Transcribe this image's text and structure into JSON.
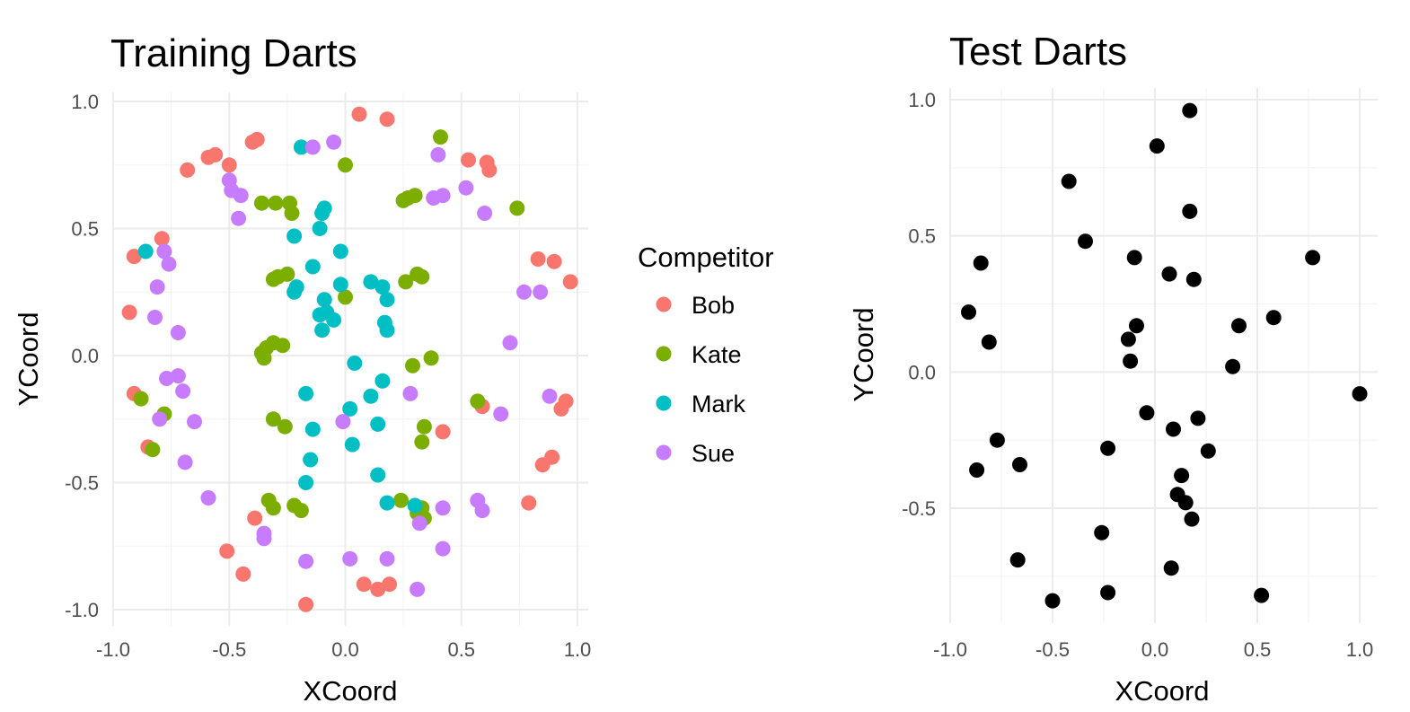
{
  "chart_data": [
    {
      "type": "scatter",
      "title": "Training Darts",
      "xlabel": "XCoord",
      "ylabel": "YCoord",
      "xlim": [
        -1.0,
        1.0
      ],
      "ylim": [
        -1.0,
        1.0
      ],
      "x_ticks": [
        "-1.0",
        "-0.5",
        "0.0",
        "0.5",
        "1.0"
      ],
      "y_ticks": [
        "-1.0",
        "-0.5",
        "0.0",
        "0.5",
        "1.0"
      ],
      "grid": true,
      "legend": {
        "title": "Competitor",
        "placement": "right"
      },
      "series": [
        {
          "name": "Bob",
          "color": "#F8766D",
          "points": [
            [
              0.06,
              0.95
            ],
            [
              0.18,
              0.93
            ],
            [
              -0.38,
              0.85
            ],
            [
              -0.4,
              0.84
            ],
            [
              -0.59,
              0.78
            ],
            [
              -0.56,
              0.79
            ],
            [
              -0.5,
              0.75
            ],
            [
              -0.68,
              0.73
            ],
            [
              0.53,
              0.77
            ],
            [
              0.61,
              0.76
            ],
            [
              0.62,
              0.73
            ],
            [
              -0.79,
              0.46
            ],
            [
              -0.91,
              0.39
            ],
            [
              0.83,
              0.38
            ],
            [
              0.9,
              0.37
            ],
            [
              0.97,
              0.29
            ],
            [
              -0.93,
              0.17
            ],
            [
              -0.91,
              -0.15
            ],
            [
              -0.85,
              -0.36
            ],
            [
              0.95,
              -0.18
            ],
            [
              0.93,
              -0.21
            ],
            [
              0.59,
              -0.2
            ],
            [
              0.42,
              -0.3
            ],
            [
              0.85,
              -0.43
            ],
            [
              0.89,
              -0.4
            ],
            [
              0.79,
              -0.58
            ],
            [
              -0.39,
              -0.64
            ],
            [
              -0.51,
              -0.77
            ],
            [
              -0.44,
              -0.86
            ],
            [
              -0.17,
              -0.98
            ],
            [
              0.08,
              -0.9
            ],
            [
              0.14,
              -0.92
            ],
            [
              0.19,
              -0.9
            ]
          ]
        },
        {
          "name": "Kate",
          "color": "#7CAE00",
          "points": [
            [
              0.41,
              0.86
            ],
            [
              0.0,
              0.75
            ],
            [
              -0.36,
              0.6
            ],
            [
              -0.3,
              0.6
            ],
            [
              -0.24,
              0.6
            ],
            [
              -0.23,
              0.56
            ],
            [
              0.25,
              0.61
            ],
            [
              0.27,
              0.62
            ],
            [
              0.3,
              0.63
            ],
            [
              0.74,
              0.58
            ],
            [
              -0.29,
              0.31
            ],
            [
              -0.31,
              0.3
            ],
            [
              -0.25,
              0.32
            ],
            [
              0.0,
              0.23
            ],
            [
              0.26,
              0.29
            ],
            [
              0.31,
              0.32
            ],
            [
              0.33,
              0.31
            ],
            [
              -0.36,
              0.01
            ],
            [
              -0.34,
              0.03
            ],
            [
              -0.31,
              0.05
            ],
            [
              -0.27,
              0.04
            ],
            [
              -0.35,
              -0.01
            ],
            [
              0.29,
              -0.04
            ],
            [
              0.37,
              -0.01
            ],
            [
              -0.88,
              -0.17
            ],
            [
              -0.78,
              -0.23
            ],
            [
              -0.83,
              -0.37
            ],
            [
              0.57,
              -0.18
            ],
            [
              0.34,
              -0.28
            ],
            [
              0.33,
              -0.34
            ],
            [
              -0.31,
              -0.25
            ],
            [
              -0.26,
              -0.28
            ],
            [
              -0.33,
              -0.57
            ],
            [
              -0.31,
              -0.6
            ],
            [
              -0.22,
              -0.59
            ],
            [
              -0.19,
              -0.61
            ],
            [
              0.24,
              -0.57
            ],
            [
              0.33,
              -0.6
            ],
            [
              0.34,
              -0.64
            ],
            [
              0.31,
              -0.62
            ]
          ]
        },
        {
          "name": "Mark",
          "color": "#00BFC4",
          "points": [
            [
              -0.19,
              0.82
            ],
            [
              -0.09,
              0.58
            ],
            [
              -0.1,
              0.56
            ],
            [
              -0.22,
              0.47
            ],
            [
              -0.11,
              0.5
            ],
            [
              -0.02,
              0.41
            ],
            [
              -0.86,
              0.41
            ],
            [
              -0.14,
              0.35
            ],
            [
              -0.21,
              0.27
            ],
            [
              -0.22,
              0.25
            ],
            [
              -0.09,
              0.22
            ],
            [
              -0.11,
              0.16
            ],
            [
              -0.08,
              0.17
            ],
            [
              -0.05,
              0.14
            ],
            [
              -0.1,
              0.1
            ],
            [
              -0.02,
              0.28
            ],
            [
              0.11,
              0.29
            ],
            [
              0.16,
              0.27
            ],
            [
              0.18,
              0.22
            ],
            [
              0.17,
              0.13
            ],
            [
              0.18,
              0.1
            ],
            [
              0.04,
              -0.03
            ],
            [
              0.11,
              -0.16
            ],
            [
              0.16,
              -0.1
            ],
            [
              0.02,
              -0.21
            ],
            [
              -0.17,
              -0.15
            ],
            [
              -0.14,
              -0.29
            ],
            [
              -0.15,
              -0.41
            ],
            [
              -0.17,
              -0.5
            ],
            [
              0.03,
              -0.35
            ],
            [
              0.14,
              -0.27
            ],
            [
              0.14,
              -0.47
            ],
            [
              0.18,
              -0.58
            ],
            [
              0.3,
              -0.59
            ]
          ]
        },
        {
          "name": "Sue",
          "color": "#C77CFF",
          "points": [
            [
              -0.05,
              0.84
            ],
            [
              -0.14,
              0.82
            ],
            [
              0.4,
              0.79
            ],
            [
              -0.5,
              0.69
            ],
            [
              -0.49,
              0.65
            ],
            [
              -0.45,
              0.63
            ],
            [
              -0.46,
              0.54
            ],
            [
              0.38,
              0.62
            ],
            [
              0.42,
              0.63
            ],
            [
              0.52,
              0.66
            ],
            [
              0.6,
              0.56
            ],
            [
              -0.78,
              0.41
            ],
            [
              -0.76,
              0.36
            ],
            [
              -0.81,
              0.27
            ],
            [
              -0.82,
              0.15
            ],
            [
              -0.72,
              0.09
            ],
            [
              0.77,
              0.25
            ],
            [
              0.84,
              0.25
            ],
            [
              0.71,
              0.05
            ],
            [
              -0.77,
              -0.09
            ],
            [
              -0.72,
              -0.08
            ],
            [
              -0.7,
              -0.14
            ],
            [
              -0.8,
              -0.25
            ],
            [
              -0.65,
              -0.26
            ],
            [
              -0.69,
              -0.42
            ],
            [
              -0.59,
              -0.56
            ],
            [
              0.28,
              -0.15
            ],
            [
              -0.01,
              -0.26
            ],
            [
              0.88,
              -0.16
            ],
            [
              0.67,
              -0.23
            ],
            [
              0.57,
              -0.57
            ],
            [
              0.59,
              -0.61
            ],
            [
              -0.35,
              -0.7
            ],
            [
              -0.35,
              -0.72
            ],
            [
              -0.17,
              -0.81
            ],
            [
              0.02,
              -0.8
            ],
            [
              0.18,
              -0.8
            ],
            [
              0.42,
              -0.6
            ],
            [
              0.42,
              -0.76
            ],
            [
              0.32,
              -0.66
            ],
            [
              0.31,
              -0.92
            ]
          ]
        }
      ]
    },
    {
      "type": "scatter",
      "title": "Test Darts",
      "xlabel": "XCoord",
      "ylabel": "YCoord",
      "xlim": [
        -1.0,
        1.0
      ],
      "ylim": [
        -0.85,
        1.0
      ],
      "x_ticks": [
        "-1.0",
        "-0.5",
        "0.0",
        "0.5",
        "1.0"
      ],
      "y_ticks": [
        "-0.5",
        "0.0",
        "0.5",
        "1.0"
      ],
      "grid": true,
      "series": [
        {
          "color": "#000000",
          "points": [
            [
              0.17,
              0.96
            ],
            [
              0.01,
              0.83
            ],
            [
              -0.42,
              0.7
            ],
            [
              0.17,
              0.59
            ],
            [
              -0.34,
              0.48
            ],
            [
              -0.85,
              0.4
            ],
            [
              -0.1,
              0.42
            ],
            [
              0.77,
              0.42
            ],
            [
              0.07,
              0.36
            ],
            [
              0.19,
              0.34
            ],
            [
              -0.91,
              0.22
            ],
            [
              -0.09,
              0.17
            ],
            [
              -0.81,
              0.11
            ],
            [
              -0.13,
              0.12
            ],
            [
              -0.12,
              0.04
            ],
            [
              0.41,
              0.17
            ],
            [
              0.58,
              0.2
            ],
            [
              0.38,
              0.02
            ],
            [
              1.0,
              -0.08
            ],
            [
              -0.04,
              -0.15
            ],
            [
              0.21,
              -0.17
            ],
            [
              0.09,
              -0.21
            ],
            [
              -0.77,
              -0.25
            ],
            [
              -0.23,
              -0.28
            ],
            [
              0.26,
              -0.29
            ],
            [
              -0.87,
              -0.36
            ],
            [
              -0.66,
              -0.34
            ],
            [
              0.13,
              -0.38
            ],
            [
              0.11,
              -0.45
            ],
            [
              0.15,
              -0.48
            ],
            [
              0.18,
              -0.54
            ],
            [
              -0.26,
              -0.59
            ],
            [
              -0.67,
              -0.69
            ],
            [
              0.08,
              -0.72
            ],
            [
              -0.23,
              -0.81
            ],
            [
              -0.5,
              -0.84
            ],
            [
              0.52,
              -0.82
            ]
          ]
        }
      ]
    }
  ]
}
